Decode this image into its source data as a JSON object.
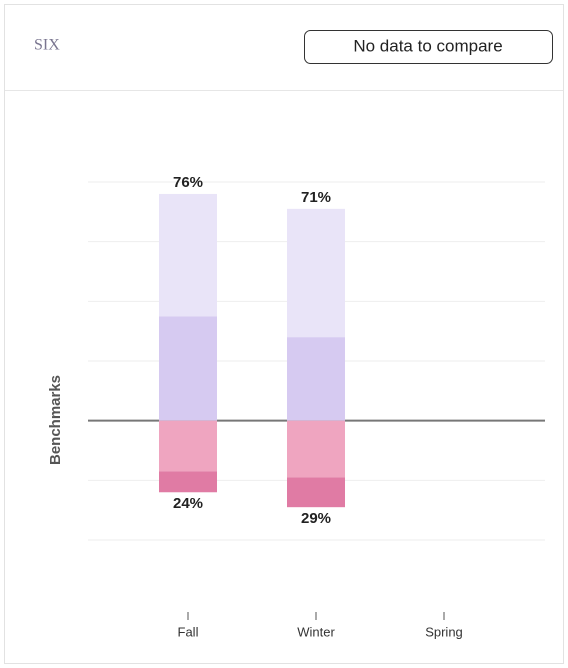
{
  "header": {
    "title": "SIX",
    "button": "No data to compare"
  },
  "chart_data": {
    "type": "diverging_bar",
    "y_label": "Benchmarks",
    "categories": [
      "Fall",
      "Winter",
      "Spring"
    ],
    "series": [
      {
        "color": "#d6caf1",
        "side": "above",
        "values": [
          35,
          28,
          null
        ]
      },
      {
        "color": "#e9e4f8",
        "side": "above",
        "values": [
          41,
          43,
          null
        ]
      },
      {
        "color": "#efa5c0",
        "side": "below",
        "values": [
          17,
          19,
          null
        ]
      },
      {
        "color": "#e07ba4",
        "side": "below",
        "values": [
          7,
          10,
          null
        ]
      }
    ],
    "totals_above": {
      "values": [
        76,
        71,
        null
      ],
      "value_labels": [
        "76%",
        "71%",
        null
      ]
    },
    "totals_below": {
      "values": [
        24,
        29,
        null
      ],
      "value_labels": [
        "24%",
        "29%",
        null
      ]
    },
    "ylim": [
      -40,
      80
    ],
    "yticks": [
      -40,
      -20,
      0,
      20,
      40,
      60,
      80
    ],
    "grid": true
  }
}
